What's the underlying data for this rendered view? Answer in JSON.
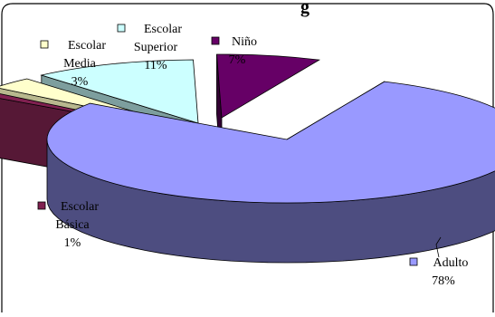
{
  "chart_data": {
    "type": "pie",
    "title": "",
    "visible_title_fragment": "g",
    "style": "3d-exploded",
    "slices": [
      {
        "label": "Adulto",
        "value": 78,
        "display": "78%",
        "color": "#9999ff",
        "side_color": "#4d4d80"
      },
      {
        "label": "Escolar Básica",
        "value": 1,
        "display": "1%",
        "color": "#802050",
        "side_color": "#561836"
      },
      {
        "label": "Escolar Media",
        "value": 3,
        "display": "3%",
        "color": "#ffffcc",
        "side_color": "#b8b88e"
      },
      {
        "label": "Escolar Superior",
        "value": 11,
        "display": "11%",
        "color": "#ccffff",
        "side_color": "#7d9e9e"
      },
      {
        "label": "Niño",
        "value": 7,
        "display": "7%",
        "color": "#660066",
        "side_color": "#330033"
      }
    ],
    "legend": "labels-with-markers-around-pie"
  }
}
